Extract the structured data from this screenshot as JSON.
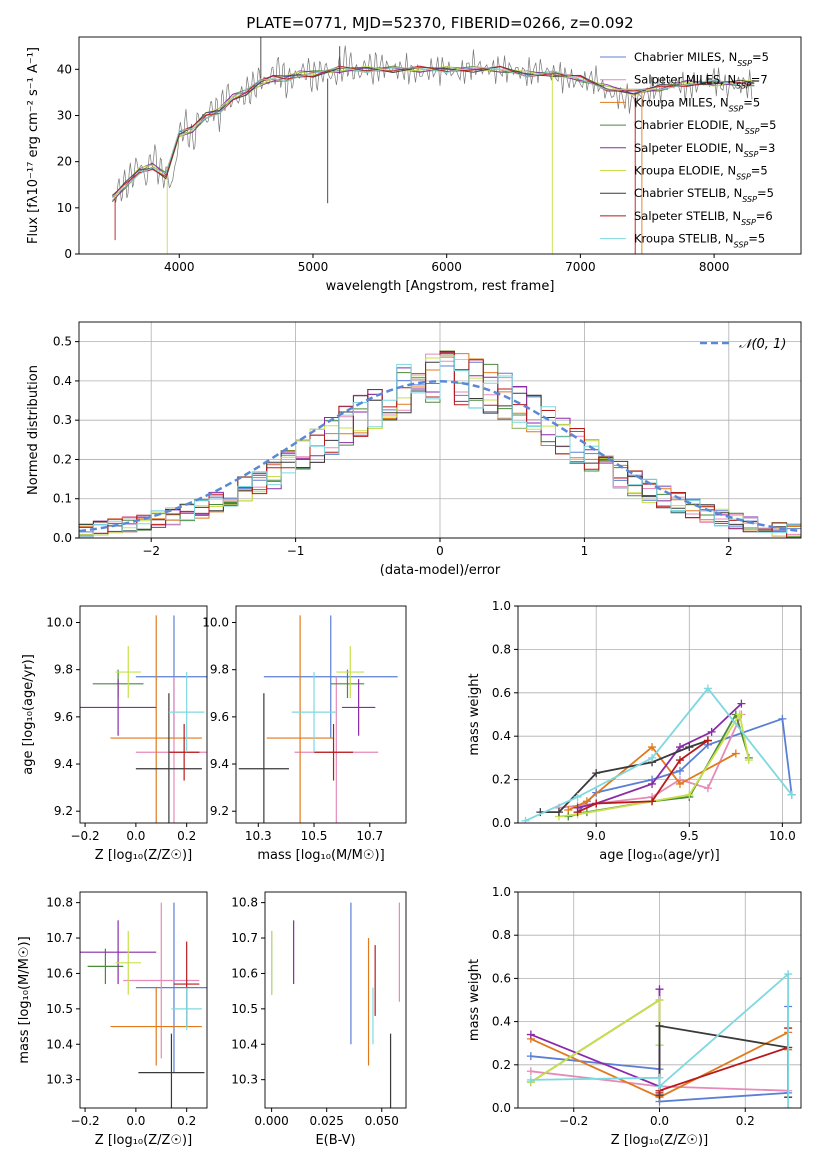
{
  "figure_title": "PLATE=0771, MJD=52370, FIBERID=0266, z=0.092",
  "series_styles": [
    {
      "name": "Chabrier MILES",
      "nssp": "5",
      "color": "#5b7fd6"
    },
    {
      "name": "Salpeter MILES",
      "nssp": "7",
      "color": "#e68ab8"
    },
    {
      "name": "Kroupa MILES",
      "nssp": "5",
      "color": "#e07a1c"
    },
    {
      "name": "Chabrier ELODIE",
      "nssp": "5",
      "color": "#4a8a3c"
    },
    {
      "name": "Salpeter ELODIE",
      "nssp": "3",
      "color": "#8a2aa8"
    },
    {
      "name": "Kroupa ELODIE",
      "nssp": "5",
      "color": "#c8e04a"
    },
    {
      "name": "Chabrier STELIB",
      "nssp": "5",
      "color": "#3a3a3a"
    },
    {
      "name": "Salpeter STELIB",
      "nssp": "6",
      "color": "#b81a1a"
    },
    {
      "name": "Kroupa STELIB",
      "nssp": "5",
      "color": "#7ed8e0"
    }
  ],
  "chart_data": [
    {
      "id": "spectrum",
      "type": "line",
      "xlabel": "wavelength [Angstrom, rest frame]",
      "ylabel": "Flux [fλ10⁻¹⁷ erg cm⁻² s⁻¹ A⁻¹]",
      "xlim": [
        3250,
        8650
      ],
      "ylim": [
        0,
        47
      ],
      "xticks": [
        4000,
        5000,
        6000,
        7000,
        8000
      ],
      "yticks": [
        0,
        10,
        20,
        30,
        40
      ],
      "legend_position": "top-right",
      "data_color": "#777777",
      "data_x": [
        3500,
        3550,
        3600,
        3650,
        3700,
        3750,
        3800,
        3850,
        3900,
        3950,
        4000,
        4050,
        4100,
        4150,
        4200,
        4250,
        4300,
        4350,
        4400,
        4450,
        4500,
        4550,
        4600,
        4650,
        4700,
        4750,
        4800,
        4850,
        4900,
        4950,
        5000,
        5050,
        5100,
        5150,
        5200,
        5250,
        5300,
        5350,
        5400,
        5450,
        5500,
        5600,
        5700,
        5800,
        5900,
        6000,
        6100,
        6200,
        6300,
        6400,
        6500,
        6600,
        6700,
        6800,
        6900,
        7000,
        7100,
        7200,
        7300,
        7400,
        7500,
        7600,
        7700,
        7800,
        7900,
        8000,
        8100,
        8200,
        8300
      ],
      "data_y": [
        12,
        14,
        15,
        17,
        20,
        16,
        22,
        18,
        17,
        15,
        26,
        28,
        24,
        30,
        29,
        32,
        30,
        35,
        33,
        34,
        35,
        36,
        38,
        37,
        39,
        40,
        37,
        38,
        39,
        40,
        38,
        39,
        40,
        38,
        40,
        42,
        40,
        39,
        41,
        40,
        41,
        40,
        40,
        39,
        40,
        40,
        39,
        41,
        40,
        40,
        40,
        39,
        40,
        39,
        38,
        37,
        38,
        35,
        34,
        33,
        35,
        36,
        37,
        36,
        37,
        38,
        36,
        37,
        36
      ],
      "model_x": [
        3500,
        3600,
        3700,
        3800,
        3900,
        4000,
        4100,
        4200,
        4300,
        4400,
        4500,
        4600,
        4700,
        4800,
        4900,
        5000,
        5200,
        5400,
        5600,
        5800,
        6000,
        6200,
        6400,
        6600,
        6800,
        7000,
        7200,
        7400,
        7600,
        7800,
        8000,
        8200,
        8300
      ],
      "model_y": [
        12,
        15,
        18,
        19,
        17,
        26,
        27,
        30,
        31,
        34,
        35,
        37,
        38,
        38,
        39,
        39,
        40,
        40,
        40,
        40,
        40,
        40,
        40,
        39,
        39,
        38,
        36,
        35,
        36,
        37,
        37,
        37,
        37
      ],
      "spikes": [
        {
          "x": 3520,
          "y0": 12,
          "y1": 3,
          "series": 7
        },
        {
          "x": 3910,
          "y0": 17,
          "y1": 0,
          "series": 5
        },
        {
          "x": 4610,
          "y0": 38,
          "y1": 47,
          "series": 6
        },
        {
          "x": 5110,
          "y0": 38,
          "y1": 11,
          "series": 6
        },
        {
          "x": 5200,
          "y0": 39,
          "y1": 45,
          "series": 6
        },
        {
          "x": 6790,
          "y0": 39,
          "y1": 0,
          "series": 5
        },
        {
          "x": 7410,
          "y0": 35,
          "y1": 0,
          "series": 7
        },
        {
          "x": 7460,
          "y0": 35,
          "y1": 0,
          "series": 2
        }
      ]
    },
    {
      "id": "residuals",
      "type": "histogram",
      "xlabel": "(data-model)/error",
      "ylabel": "Normed distribution",
      "xlim": [
        -2.5,
        2.5
      ],
      "ylim": [
        0,
        0.55
      ],
      "xticks": [
        -2,
        -1,
        0,
        1,
        2
      ],
      "yticks": [
        0.0,
        0.1,
        0.2,
        0.3,
        0.4,
        0.5
      ],
      "grid": true,
      "reference_label": "𝒩(0, 1)",
      "reference_color": "#5b88d6",
      "legend_position": "top-right",
      "bin_edges": [
        -2.5,
        -2.4,
        -2.3,
        -2.2,
        -2.1,
        -2.0,
        -1.9,
        -1.8,
        -1.7,
        -1.6,
        -1.5,
        -1.4,
        -1.3,
        -1.2,
        -1.1,
        -1.0,
        -0.9,
        -0.8,
        -0.7,
        -0.6,
        -0.5,
        -0.4,
        -0.3,
        -0.2,
        -0.1,
        0.0,
        0.1,
        0.2,
        0.3,
        0.4,
        0.5,
        0.6,
        0.7,
        0.8,
        0.9,
        1.0,
        1.1,
        1.2,
        1.3,
        1.4,
        1.5,
        1.6,
        1.7,
        1.8,
        1.9,
        2.0,
        2.1,
        2.2,
        2.3,
        2.4,
        2.5
      ],
      "base_values": [
        0.02,
        0.025,
        0.03,
        0.035,
        0.04,
        0.048,
        0.055,
        0.065,
        0.075,
        0.09,
        0.11,
        0.125,
        0.14,
        0.16,
        0.185,
        0.21,
        0.235,
        0.26,
        0.285,
        0.31,
        0.335,
        0.36,
        0.38,
        0.395,
        0.405,
        0.41,
        0.405,
        0.395,
        0.38,
        0.36,
        0.335,
        0.31,
        0.285,
        0.26,
        0.235,
        0.21,
        0.185,
        0.16,
        0.14,
        0.12,
        0.105,
        0.09,
        0.075,
        0.062,
        0.052,
        0.043,
        0.035,
        0.028,
        0.022,
        0.018
      ]
    },
    {
      "id": "age_vs_Z",
      "type": "errorbar",
      "xlabel": "Z [log₁₀(Z/Z☉)]",
      "ylabel": "age  [log₁₀(age/yr)]",
      "xlim": [
        -0.22,
        0.28
      ],
      "ylim": [
        9.15,
        10.07
      ],
      "xticks": [
        -0.2,
        0.0,
        0.2
      ],
      "xticklabels": [
        "−0.2",
        "0.0",
        "0.2"
      ],
      "yticks": [
        9.2,
        9.4,
        9.6,
        9.8,
        10.0
      ],
      "points": [
        {
          "series": 0,
          "x": 0.15,
          "y": 9.77,
          "xerr": 0.15,
          "yerr": 0.26
        },
        {
          "series": 1,
          "x": 0.15,
          "y": 9.45,
          "xerr": 0.15,
          "yerr": 0.32
        },
        {
          "series": 2,
          "x": 0.08,
          "y": 9.51,
          "xerr": 0.18,
          "yerr": 0.52
        },
        {
          "series": 3,
          "x": -0.07,
          "y": 9.74,
          "xerr": 0.1,
          "yerr": 0.06
        },
        {
          "series": 4,
          "x": -0.07,
          "y": 9.64,
          "xerr": 0.15,
          "yerr": 0.12
        },
        {
          "series": 5,
          "x": -0.03,
          "y": 9.79,
          "xerr": 0.05,
          "yerr": 0.11
        },
        {
          "series": 6,
          "x": 0.13,
          "y": 9.38,
          "xerr": 0.13,
          "yerr": 0.32
        },
        {
          "series": 7,
          "x": 0.19,
          "y": 9.45,
          "xerr": 0.06,
          "yerr": 0.12
        },
        {
          "series": 8,
          "x": 0.2,
          "y": 9.62,
          "xerr": 0.07,
          "yerr": 0.17
        }
      ]
    },
    {
      "id": "age_vs_mass",
      "type": "errorbar",
      "xlabel": "mass [log₁₀(M/M☉)]",
      "ylabel": "",
      "xlim": [
        10.22,
        10.83
      ],
      "ylim": [
        9.15,
        10.07
      ],
      "xticks": [
        10.3,
        10.5,
        10.7
      ],
      "xticklabels": [
        "10.3",
        "10.5",
        "10.7"
      ],
      "yticks": [
        9.2,
        9.4,
        9.6,
        9.8,
        10.0
      ],
      "points": [
        {
          "series": 0,
          "x": 0.0,
          "y": 9.77,
          "m": 10.56,
          "merr": 0.24,
          "yerr": 0.26
        },
        {
          "series": 1,
          "x": 0.0,
          "y": 9.45,
          "m": 10.58,
          "merr": 0.15,
          "yerr": 0.32
        },
        {
          "series": 2,
          "x": 0.0,
          "y": 9.51,
          "m": 10.45,
          "merr": 0.12,
          "yerr": 0.52
        },
        {
          "series": 3,
          "x": 0.0,
          "y": 9.74,
          "m": 10.62,
          "merr": 0.06,
          "yerr": 0.06
        },
        {
          "series": 4,
          "x": 0.0,
          "y": 9.64,
          "m": 10.66,
          "merr": 0.06,
          "yerr": 0.12
        },
        {
          "series": 5,
          "x": 0.0,
          "y": 9.79,
          "m": 10.63,
          "merr": 0.05,
          "yerr": 0.11
        },
        {
          "series": 6,
          "x": 0.0,
          "y": 9.38,
          "m": 10.32,
          "merr": 0.09,
          "yerr": 0.32
        },
        {
          "series": 7,
          "x": 0.0,
          "y": 9.45,
          "m": 10.57,
          "merr": 0.07,
          "yerr": 0.12
        },
        {
          "series": 8,
          "x": 0.0,
          "y": 9.62,
          "m": 10.5,
          "merr": 0.08,
          "yerr": 0.17
        }
      ]
    },
    {
      "id": "mass_weight_vs_age",
      "type": "line",
      "xlabel": "age  [log₁₀(age/yr)]",
      "ylabel": "mass weight",
      "xlim": [
        8.58,
        10.1
      ],
      "ylim": [
        0,
        1
      ],
      "xticks": [
        9.0,
        9.5,
        10.0
      ],
      "yticks": [
        0.0,
        0.2,
        0.4,
        0.6,
        0.8,
        1.0
      ],
      "grid": true,
      "series": [
        {
          "series": 0,
          "x": [
            8.9,
            9.0,
            9.3,
            9.45,
            9.6,
            10.0,
            10.05
          ],
          "y": [
            0.05,
            0.14,
            0.2,
            0.24,
            0.36,
            0.48,
            0.13
          ]
        },
        {
          "series": 1,
          "x": [
            8.8,
            8.9,
            9.3,
            9.45,
            9.6,
            9.78
          ],
          "y": [
            0.07,
            0.08,
            0.12,
            0.2,
            0.16,
            0.5
          ]
        },
        {
          "series": 2,
          "x": [
            8.85,
            8.95,
            9.3,
            9.45,
            9.75
          ],
          "y": [
            0.06,
            0.1,
            0.35,
            0.18,
            0.32
          ]
        },
        {
          "series": 3,
          "x": [
            8.85,
            8.95,
            9.3,
            9.5,
            9.75,
            9.82
          ],
          "y": [
            0.03,
            0.05,
            0.1,
            0.12,
            0.5,
            0.3
          ]
        },
        {
          "series": 4,
          "x": [
            8.9,
            9.0,
            9.3,
            9.45,
            9.62,
            9.78
          ],
          "y": [
            0.07,
            0.09,
            0.18,
            0.35,
            0.42,
            0.55
          ]
        },
        {
          "series": 5,
          "x": [
            8.8,
            8.9,
            9.3,
            9.5,
            9.77,
            9.82
          ],
          "y": [
            0.03,
            0.04,
            0.1,
            0.13,
            0.5,
            0.29
          ]
        },
        {
          "series": 6,
          "x": [
            8.7,
            8.8,
            9.0,
            9.3,
            9.5,
            9.6
          ],
          "y": [
            0.05,
            0.05,
            0.23,
            0.28,
            0.35,
            0.38
          ]
        },
        {
          "series": 7,
          "x": [
            8.9,
            9.0,
            9.3,
            9.45,
            9.6
          ],
          "y": [
            0.05,
            0.09,
            0.1,
            0.29,
            0.38
          ]
        },
        {
          "series": 8,
          "x": [
            8.62,
            8.9,
            9.3,
            9.6,
            10.05
          ],
          "y": [
            0.01,
            0.12,
            0.3,
            0.62,
            0.13
          ]
        }
      ]
    },
    {
      "id": "mass_vs_Z",
      "type": "errorbar",
      "xlabel": "Z [log₁₀(Z/Z☉)]",
      "ylabel": "mass [log₁₀(M/M☉)]",
      "xlim": [
        -0.22,
        0.28
      ],
      "ylim": [
        10.22,
        10.83
      ],
      "xticks": [
        -0.2,
        0.0,
        0.2
      ],
      "xticklabels": [
        "−0.2",
        "0.0",
        "0.2"
      ],
      "yticks": [
        10.3,
        10.4,
        10.5,
        10.6,
        10.7,
        10.8
      ],
      "points": [
        {
          "series": 0,
          "x": 0.15,
          "y": 10.56,
          "xerr": 0.15,
          "yerr": 0.24
        },
        {
          "series": 1,
          "x": 0.1,
          "y": 10.58,
          "xerr": 0.15,
          "yerr": 0.22
        },
        {
          "series": 2,
          "x": 0.08,
          "y": 10.45,
          "xerr": 0.18,
          "yerr": 0.11
        },
        {
          "series": 3,
          "x": -0.12,
          "y": 10.62,
          "xerr": 0.07,
          "yerr": 0.05
        },
        {
          "series": 4,
          "x": -0.07,
          "y": 10.66,
          "xerr": 0.15,
          "yerr": 0.09
        },
        {
          "series": 5,
          "x": -0.03,
          "y": 10.63,
          "xerr": 0.05,
          "yerr": 0.09
        },
        {
          "series": 6,
          "x": 0.14,
          "y": 10.32,
          "xerr": 0.13,
          "yerr": 0.11
        },
        {
          "series": 7,
          "x": 0.2,
          "y": 10.57,
          "xerr": 0.05,
          "yerr": 0.12
        },
        {
          "series": 8,
          "x": 0.2,
          "y": 10.5,
          "xerr": 0.06,
          "yerr": 0.06
        }
      ]
    },
    {
      "id": "mass_vs_EBV",
      "type": "errorbar",
      "xlabel": "E(B-V)",
      "ylabel": "",
      "xlim": [
        -0.003,
        0.061
      ],
      "ylim": [
        10.22,
        10.83
      ],
      "xticks": [
        0.0,
        0.025,
        0.05
      ],
      "xticklabels": [
        "0.000",
        "0.025",
        "0.050"
      ],
      "yticks": [
        10.3,
        10.4,
        10.5,
        10.6,
        10.7,
        10.8
      ],
      "points": [
        {
          "series": 0,
          "x": 0.036,
          "y": 10.6,
          "yerr": 0.2
        },
        {
          "series": 1,
          "x": 0.058,
          "y": 10.66,
          "yerr": 0.14
        },
        {
          "series": 2,
          "x": 0.044,
          "y": 10.52,
          "yerr": 0.18
        },
        {
          "series": 3,
          "x": 0.0,
          "y": 10.63,
          "yerr": 0.09
        },
        {
          "series": 4,
          "x": 0.01,
          "y": 10.66,
          "yerr": 0.09
        },
        {
          "series": 5,
          "x": 0.0,
          "y": 10.63,
          "yerr": 0.09
        },
        {
          "series": 6,
          "x": 0.054,
          "y": 10.32,
          "yerr": 0.11
        },
        {
          "series": 7,
          "x": 0.047,
          "y": 10.58,
          "yerr": 0.1
        },
        {
          "series": 8,
          "x": 0.046,
          "y": 10.48,
          "yerr": 0.08
        }
      ]
    },
    {
      "id": "mass_weight_vs_Z",
      "type": "line",
      "xlabel": "Z [log₁₀(Z/Z☉)]",
      "ylabel": "mass weight",
      "xlim": [
        -0.33,
        0.33
      ],
      "ylim": [
        0,
        1
      ],
      "xticks": [
        -0.2,
        0.0,
        0.2
      ],
      "xticklabels": [
        "−0.2",
        "0.0",
        "0.2"
      ],
      "yticks": [
        0.0,
        0.2,
        0.4,
        0.6,
        0.8,
        1.0
      ],
      "grid": true,
      "series": [
        {
          "series": 0,
          "x": [
            -0.3,
            0.0,
            0.0,
            0.3,
            0.3
          ],
          "y": [
            0.24,
            0.18,
            0.03,
            0.07,
            0.47
          ]
        },
        {
          "series": 1,
          "x": [
            -0.3,
            0.0,
            0.0,
            0.3
          ],
          "y": [
            0.17,
            0.1,
            0.1,
            0.08
          ]
        },
        {
          "series": 2,
          "x": [
            -0.3,
            0.0,
            0.3,
            0.3
          ],
          "y": [
            0.32,
            0.05,
            0.35,
            0.27
          ]
        },
        {
          "series": 3,
          "x": [
            -0.3,
            0.0,
            0.0
          ],
          "y": [
            0.12,
            0.5,
            0.29
          ]
        },
        {
          "series": 4,
          "x": [
            -0.3,
            0.0,
            0.0
          ],
          "y": [
            0.34,
            0.1,
            0.55
          ]
        },
        {
          "series": 5,
          "x": [
            -0.3,
            0.0,
            0.0
          ],
          "y": [
            0.12,
            0.5,
            0.29
          ]
        },
        {
          "series": 6,
          "x": [
            0.0,
            0.0,
            0.3,
            0.3
          ],
          "y": [
            0.06,
            0.38,
            0.28,
            0.05
          ]
        },
        {
          "series": 7,
          "x": [
            0.0,
            0.0,
            0.3,
            0.3
          ],
          "y": [
            0.07,
            0.08,
            0.28,
            0.37
          ]
        },
        {
          "series": 8,
          "x": [
            -0.3,
            0.0,
            0.0,
            0.3,
            0.3
          ],
          "y": [
            0.13,
            0.14,
            0.1,
            0.62,
            0.0
          ]
        }
      ]
    }
  ]
}
